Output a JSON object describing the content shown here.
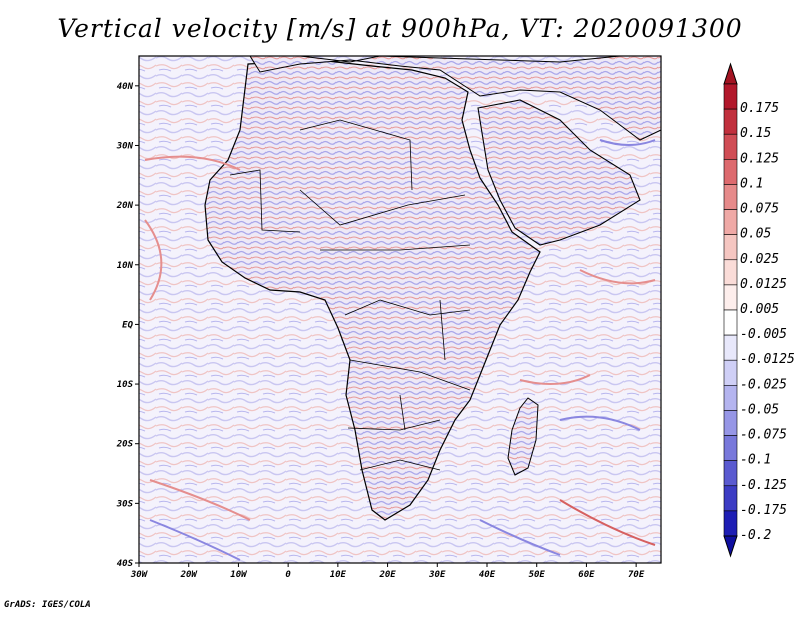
{
  "title": "Vertical velocity [m/s] at 900hPa, VT: 2020091300",
  "credit": "GrADS: IGES/COLA",
  "map": {
    "lat_range": [
      -40,
      45
    ],
    "lon_range": [
      -30,
      75
    ],
    "lat_ticks": [
      {
        "label": "40N",
        "value": 40
      },
      {
        "label": "30N",
        "value": 30
      },
      {
        "label": "20N",
        "value": 20
      },
      {
        "label": "10N",
        "value": 10
      },
      {
        "label": "EQ",
        "value": 0
      },
      {
        "label": "10S",
        "value": -10
      },
      {
        "label": "20S",
        "value": -20
      },
      {
        "label": "30S",
        "value": -30
      },
      {
        "label": "40S",
        "value": -40
      }
    ],
    "lon_ticks": [
      {
        "label": "30W",
        "value": -30
      },
      {
        "label": "20W",
        "value": -20
      },
      {
        "label": "10W",
        "value": -10
      },
      {
        "label": "0",
        "value": 0
      },
      {
        "label": "10E",
        "value": 10
      },
      {
        "label": "20E",
        "value": 20
      },
      {
        "label": "30E",
        "value": 30
      },
      {
        "label": "40E",
        "value": 40
      },
      {
        "label": "50E",
        "value": 50
      },
      {
        "label": "60E",
        "value": 60
      },
      {
        "label": "70E",
        "value": 70
      }
    ]
  },
  "colorbar": {
    "levels": [
      {
        "label": "0.175",
        "color": "#b2182b"
      },
      {
        "label": "0.15",
        "color": "#c1303d"
      },
      {
        "label": "0.125",
        "color": "#d04d55"
      },
      {
        "label": "0.1",
        "color": "#dd6a6e"
      },
      {
        "label": "0.075",
        "color": "#e68a8a"
      },
      {
        "label": "0.05",
        "color": "#efa9a6"
      },
      {
        "label": "0.025",
        "color": "#f5c6c1"
      },
      {
        "label": "0.0125",
        "color": "#fadcd8"
      },
      {
        "label": "0.005",
        "color": "#fdeeec"
      },
      {
        "label": "-0.005",
        "color": "#ffffff"
      },
      {
        "label": "-0.0125",
        "color": "#e8e8fb"
      },
      {
        "label": "-0.025",
        "color": "#cfcff6"
      },
      {
        "label": "-0.05",
        "color": "#b4b4ef"
      },
      {
        "label": "-0.075",
        "color": "#9696e6"
      },
      {
        "label": "-0.1",
        "color": "#7878db"
      },
      {
        "label": "-0.125",
        "color": "#5a5ad0"
      },
      {
        "label": "-0.175",
        "color": "#3c3cc4"
      },
      {
        "label": "-0.2",
        "color": "#1e1eb4"
      }
    ],
    "top_arrow_color": "#a31422",
    "bottom_arrow_color": "#0f0fa0"
  }
}
